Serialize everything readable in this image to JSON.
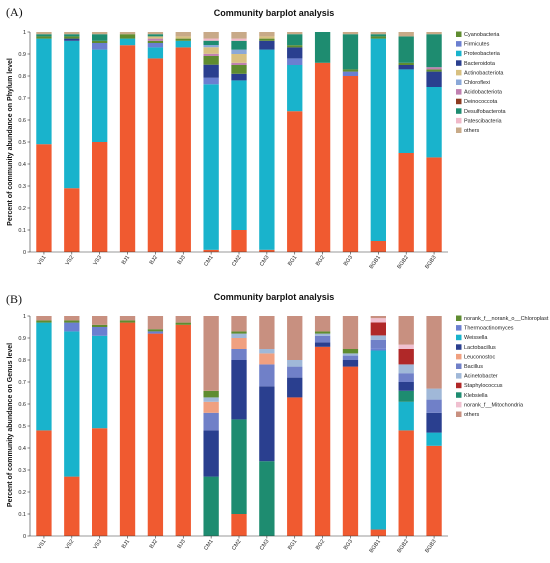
{
  "panel_letters": [
    "(A)",
    "(B)"
  ],
  "chart_data": [
    {
      "type": "bar",
      "stacked": true,
      "title": "Community barplot analysis",
      "xlabel": "",
      "ylabel": "Percent of community abundance on Phylum level",
      "ylim": [
        0,
        1
      ],
      "yticks": [
        "0",
        "0.1",
        "0.2",
        "0.3",
        "0.4",
        "0.5",
        "0.6",
        "0.7",
        "0.8",
        "0.9",
        "1"
      ],
      "legend_position": "right",
      "categories": [
        "VS1",
        "VS2",
        "VS3",
        "BJ1",
        "BJ2",
        "BJ3",
        "CM1",
        "CM2",
        "CM3",
        "BG1",
        "BG2",
        "BG3",
        "BGB1",
        "BGB2",
        "BGB3"
      ],
      "series": [
        {
          "name": "Deinococcota",
          "color": "#f05a30",
          "values": [
            0.49,
            0.29,
            0.5,
            0.94,
            0.88,
            0.93,
            0.01,
            0.1,
            0.01,
            0.64,
            0.86,
            0.8,
            0.05,
            0.45,
            0.43
          ]
        },
        {
          "name": "Proteobacteria",
          "color": "#19b3cc",
          "values": [
            0.48,
            0.67,
            0.42,
            0.03,
            0.05,
            0.03,
            0.76,
            0.68,
            0.91,
            0.21,
            0.0,
            0.0,
            0.92,
            0.38,
            0.32
          ]
        },
        {
          "name": "Firmicutes",
          "color": "#6b7fd0",
          "values": [
            0.0,
            0.0,
            0.03,
            0.0,
            0.02,
            0.0,
            0.03,
            0.0,
            0.0,
            0.03,
            0.0,
            0.02,
            0.0,
            0.0,
            0.0
          ]
        },
        {
          "name": "Bacteroidota",
          "color": "#2a3f8f",
          "values": [
            0.0,
            0.01,
            0.0,
            0.0,
            0.0,
            0.0,
            0.06,
            0.03,
            0.04,
            0.05,
            0.0,
            0.0,
            0.0,
            0.02,
            0.07
          ]
        },
        {
          "name": "Cyanobacteria",
          "color": "#5f8c30",
          "values": [
            0.01,
            0.01,
            0.01,
            0.02,
            0.01,
            0.01,
            0.04,
            0.04,
            0.01,
            0.01,
            0.0,
            0.01,
            0.01,
            0.01,
            0.01
          ]
        },
        {
          "name": "Acidobacteriota",
          "color": "#c080b0",
          "values": [
            0.0,
            0.0,
            0.0,
            0.0,
            0.01,
            0.0,
            0.01,
            0.01,
            0.0,
            0.0,
            0.0,
            0.0,
            0.0,
            0.0,
            0.01
          ]
        },
        {
          "name": "Actinobacteriota",
          "color": "#d8c080",
          "values": [
            0.0,
            0.0,
            0.0,
            0.0,
            0.01,
            0.01,
            0.03,
            0.04,
            0.01,
            0.0,
            0.0,
            0.0,
            0.0,
            0.0,
            0.0
          ]
        },
        {
          "name": "Chloroflexi",
          "color": "#8aa8d8",
          "values": [
            0.0,
            0.0,
            0.0,
            0.0,
            0.0,
            0.0,
            0.01,
            0.02,
            0.0,
            0.0,
            0.0,
            0.0,
            0.0,
            0.0,
            0.0
          ]
        },
        {
          "name": "Desulfobacterota",
          "color": "#1e8c70",
          "values": [
            0.01,
            0.01,
            0.03,
            0.0,
            0.01,
            0.0,
            0.02,
            0.04,
            0.0,
            0.05,
            0.14,
            0.16,
            0.01,
            0.12,
            0.15
          ]
        },
        {
          "name": "Patescibacteria",
          "color": "#f0b8c8",
          "values": [
            0.0,
            0.0,
            0.0,
            0.0,
            0.0,
            0.0,
            0.01,
            0.01,
            0.0,
            0.0,
            0.0,
            0.0,
            0.0,
            0.0,
            0.0
          ]
        },
        {
          "name": "others",
          "color": "#c8aa88",
          "values": [
            0.01,
            0.01,
            0.01,
            0.01,
            0.01,
            0.02,
            0.03,
            0.03,
            0.02,
            0.01,
            0.0,
            0.01,
            0.01,
            0.02,
            0.01
          ]
        }
      ],
      "legend": [
        {
          "name": "Cyanobacteria",
          "color": "#5f8c30"
        },
        {
          "name": "Firmicutes",
          "color": "#6b7fd0"
        },
        {
          "name": "Proteobacteria",
          "color": "#19b3cc"
        },
        {
          "name": "Bacteroidota",
          "color": "#2a3f8f"
        },
        {
          "name": "Actinobacteriota",
          "color": "#d8c080"
        },
        {
          "name": "Chloroflexi",
          "color": "#8aa8d8"
        },
        {
          "name": "Acidobacteriota",
          "color": "#c080b0"
        },
        {
          "name": "Deinococcota",
          "color": "#8c3a20"
        },
        {
          "name": "Desulfobacterota",
          "color": "#1e8c70"
        },
        {
          "name": "Patescibacteria",
          "color": "#f0b8c8"
        },
        {
          "name": "others",
          "color": "#c8aa88"
        }
      ]
    },
    {
      "type": "bar",
      "stacked": true,
      "title": "Community barplot analysis",
      "xlabel": "",
      "ylabel": "Percent of community abundance on Genus level",
      "ylim": [
        0,
        1
      ],
      "yticks": [
        "0",
        "0.1",
        "0.2",
        "0.3",
        "0.4",
        "0.5",
        "0.6",
        "0.7",
        "0.8",
        "0.9",
        "1"
      ],
      "legend_position": "right",
      "categories": [
        "VS1",
        "VS2",
        "VS3",
        "BJ1",
        "BJ2",
        "BJ3",
        "CM1",
        "CM2",
        "CM3",
        "BG1",
        "BG2",
        "BG3",
        "BGB1",
        "BGB2",
        "BGB3"
      ],
      "series": [
        {
          "name": "Staphylococcus",
          "color": "#f05a30",
          "values": [
            0.48,
            0.27,
            0.49,
            0.97,
            0.92,
            0.96,
            0.0,
            0.1,
            0.0,
            0.63,
            0.86,
            0.77,
            0.03,
            0.48,
            0.41
          ]
        },
        {
          "name": "Weissella",
          "color": "#19b3cc",
          "values": [
            0.49,
            0.66,
            0.42,
            0.0,
            0.0,
            0.0,
            0.0,
            0.0,
            0.0,
            0.0,
            0.0,
            0.0,
            0.83,
            0.13,
            0.06
          ]
        },
        {
          "name": "Thermoactinomyces",
          "color": "#6b7fd0",
          "values": [
            0.0,
            0.04,
            0.04,
            0.0,
            0.01,
            0.0,
            0.0,
            0.0,
            0.0,
            0.0,
            0.0,
            0.0,
            0.01,
            0.0,
            0.0
          ]
        },
        {
          "name": "Klebsiella",
          "color": "#1e8c70",
          "values": [
            0.0,
            0.0,
            0.0,
            0.0,
            0.0,
            0.0,
            0.27,
            0.43,
            0.34,
            0.0,
            0.0,
            0.0,
            0.0,
            0.05,
            0.0
          ]
        },
        {
          "name": "Lactobacillus",
          "color": "#2a3f8f",
          "values": [
            0.0,
            0.0,
            0.0,
            0.0,
            0.0,
            0.0,
            0.21,
            0.27,
            0.34,
            0.09,
            0.02,
            0.03,
            0.0,
            0.04,
            0.09
          ]
        },
        {
          "name": "Bacillus",
          "color": "#7080c8",
          "values": [
            0.0,
            0.0,
            0.0,
            0.0,
            0.0,
            0.0,
            0.08,
            0.05,
            0.1,
            0.05,
            0.03,
            0.02,
            0.04,
            0.04,
            0.06
          ]
        },
        {
          "name": "Leuconostoc",
          "color": "#f0a080",
          "values": [
            0.0,
            0.0,
            0.0,
            0.0,
            0.0,
            0.0,
            0.05,
            0.05,
            0.05,
            0.0,
            0.0,
            0.0,
            0.0,
            0.0,
            0.0
          ]
        },
        {
          "name": "Acinetobacter",
          "color": "#a0b8d8",
          "values": [
            0.0,
            0.0,
            0.0,
            0.0,
            0.0,
            0.0,
            0.02,
            0.02,
            0.02,
            0.03,
            0.01,
            0.01,
            0.02,
            0.04,
            0.05
          ]
        },
        {
          "name": "norank_f__norank_o__Chloroplast",
          "color": "#5f8c30",
          "values": [
            0.01,
            0.01,
            0.01,
            0.01,
            0.01,
            0.01,
            0.03,
            0.01,
            0.0,
            0.0,
            0.01,
            0.02,
            0.0,
            0.0,
            0.0
          ]
        },
        {
          "name": "Staphylococcus",
          "color": "#b02828",
          "values": [
            0.0,
            0.0,
            0.0,
            0.0,
            0.0,
            0.0,
            0.0,
            0.0,
            0.0,
            0.0,
            0.0,
            0.0,
            0.06,
            0.07,
            0.0
          ]
        },
        {
          "name": "norank_f__Mitochondria",
          "color": "#f0c0d0",
          "values": [
            0.0,
            0.0,
            0.0,
            0.0,
            0.0,
            0.0,
            0.0,
            0.0,
            0.0,
            0.0,
            0.0,
            0.0,
            0.02,
            0.02,
            0.0
          ]
        },
        {
          "name": "others",
          "color": "#c89080",
          "values": [
            0.02,
            0.02,
            0.04,
            0.02,
            0.06,
            0.03,
            0.34,
            0.07,
            0.15,
            0.2,
            0.07,
            0.15,
            0.01,
            0.13,
            0.33
          ]
        }
      ],
      "legend": [
        {
          "name": "norank_f__norank_o__Chloroplast",
          "color": "#5f8c30"
        },
        {
          "name": "Thermoactinomyces",
          "color": "#6b7fd0"
        },
        {
          "name": "Weissella",
          "color": "#19b3cc"
        },
        {
          "name": "Lactobacillus",
          "color": "#2a3f8f"
        },
        {
          "name": "Leuconostoc",
          "color": "#f0a080"
        },
        {
          "name": "Bacillus",
          "color": "#7080c8"
        },
        {
          "name": "Acinetobacter",
          "color": "#a0b8d8"
        },
        {
          "name": "Staphylococcus",
          "color": "#b02828"
        },
        {
          "name": "Klebsiella",
          "color": "#1e8c70"
        },
        {
          "name": "norank_f__Mitochondria",
          "color": "#f0c0d0"
        },
        {
          "name": "others",
          "color": "#c89080"
        }
      ]
    }
  ]
}
